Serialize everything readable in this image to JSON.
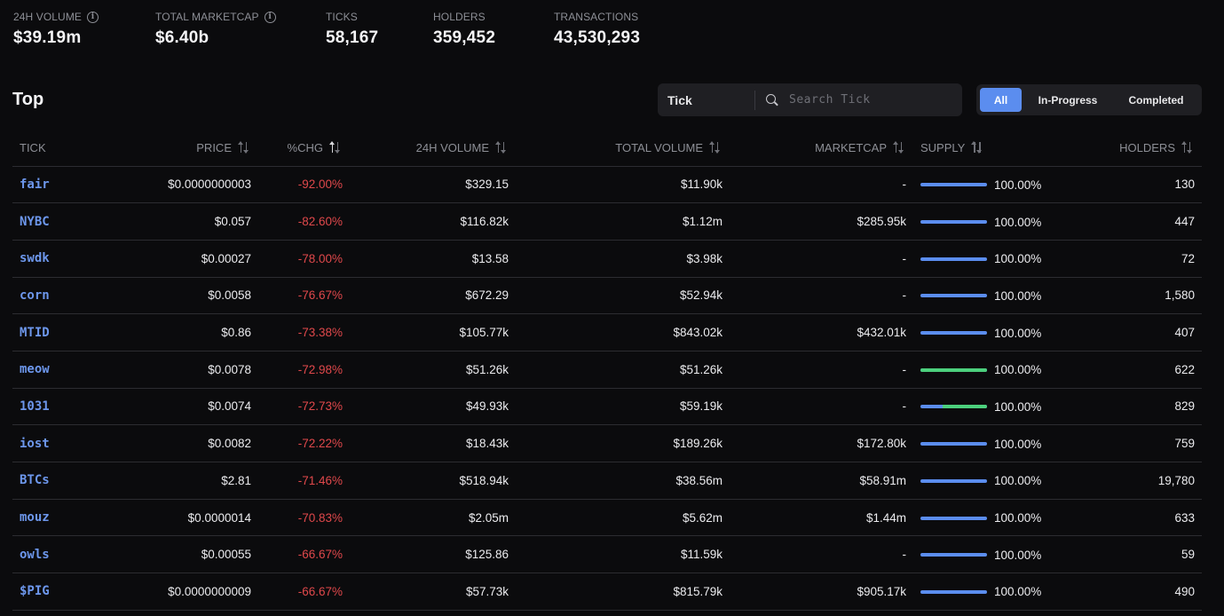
{
  "stats": [
    {
      "label": "24H VOLUME",
      "value": "$39.19m",
      "info": true
    },
    {
      "label": "TOTAL MARKETCAP",
      "value": "$6.40b",
      "info": true
    },
    {
      "label": "TICKS",
      "value": "58,167",
      "info": false
    },
    {
      "label": "HOLDERS",
      "value": "359,452",
      "info": false
    },
    {
      "label": "TRANSACTIONS",
      "value": "43,530,293",
      "info": false
    }
  ],
  "section_title": "Top",
  "search": {
    "select_label": "Tick",
    "placeholder": "Search Tick"
  },
  "filters": [
    "All",
    "In-Progress",
    "Completed"
  ],
  "columns": {
    "tick": "TICK",
    "price": "PRICE",
    "chg": "%CHG",
    "vol24": "24H VOLUME",
    "total": "TOTAL VOLUME",
    "mcap": "MARKETCAP",
    "supply": "SUPPLY",
    "holders": "HOLDERS"
  },
  "colors": {
    "accent": "#5b8def",
    "tick": "#6d97ec",
    "negative": "#e0484b",
    "minted": "#4cd07d"
  },
  "rows": [
    {
      "tick": "fair",
      "price": "$0.0000000003",
      "chg": "-92.00%",
      "vol24": "$329.15",
      "total": "$11.90k",
      "mcap": "-",
      "supply": "100.00%",
      "holders": "130",
      "green": 0
    },
    {
      "tick": "NYBC",
      "price": "$0.057",
      "chg": "-82.60%",
      "vol24": "$116.82k",
      "total": "$1.12m",
      "mcap": "$285.95k",
      "supply": "100.00%",
      "holders": "447",
      "green": 0
    },
    {
      "tick": "swdk",
      "price": "$0.00027",
      "chg": "-78.00%",
      "vol24": "$13.58",
      "total": "$3.98k",
      "mcap": "-",
      "supply": "100.00%",
      "holders": "72",
      "green": 0
    },
    {
      "tick": "corn",
      "price": "$0.0058",
      "chg": "-76.67%",
      "vol24": "$672.29",
      "total": "$52.94k",
      "mcap": "-",
      "supply": "100.00%",
      "holders": "1,580",
      "green": 0
    },
    {
      "tick": "MTID",
      "price": "$0.86",
      "chg": "-73.38%",
      "vol24": "$105.77k",
      "total": "$843.02k",
      "mcap": "$432.01k",
      "supply": "100.00%",
      "holders": "407",
      "green": 0
    },
    {
      "tick": "meow",
      "price": "$0.0078",
      "chg": "-72.98%",
      "vol24": "$51.26k",
      "total": "$51.26k",
      "mcap": "-",
      "supply": "100.00%",
      "holders": "622",
      "green": 1
    },
    {
      "tick": "1031",
      "price": "$0.0074",
      "chg": "-72.73%",
      "vol24": "$49.93k",
      "total": "$59.19k",
      "mcap": "-",
      "supply": "100.00%",
      "holders": "829",
      "green": 0.67
    },
    {
      "tick": "iost",
      "price": "$0.0082",
      "chg": "-72.22%",
      "vol24": "$18.43k",
      "total": "$189.26k",
      "mcap": "$172.80k",
      "supply": "100.00%",
      "holders": "759",
      "green": 0
    },
    {
      "tick": "BTCs",
      "price": "$2.81",
      "chg": "-71.46%",
      "vol24": "$518.94k",
      "total": "$38.56m",
      "mcap": "$58.91m",
      "supply": "100.00%",
      "holders": "19,780",
      "green": 0
    },
    {
      "tick": "mouz",
      "price": "$0.0000014",
      "chg": "-70.83%",
      "vol24": "$2.05m",
      "total": "$5.62m",
      "mcap": "$1.44m",
      "supply": "100.00%",
      "holders": "633",
      "green": 0
    },
    {
      "tick": "owls",
      "price": "$0.00055",
      "chg": "-66.67%",
      "vol24": "$125.86",
      "total": "$11.59k",
      "mcap": "-",
      "supply": "100.00%",
      "holders": "59",
      "green": 0
    },
    {
      "tick": "$PIG",
      "price": "$0.0000000009",
      "chg": "-66.67%",
      "vol24": "$57.73k",
      "total": "$815.79k",
      "mcap": "$905.17k",
      "supply": "100.00%",
      "holders": "490",
      "green": 0
    }
  ]
}
